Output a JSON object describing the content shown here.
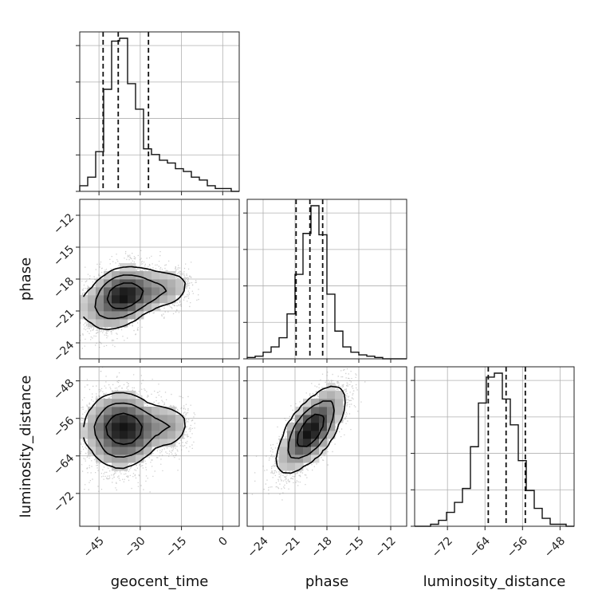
{
  "chart_data": {
    "type": "corner",
    "parameters": [
      "geocent_time",
      "phase",
      "luminosity_distance"
    ],
    "ranges": {
      "geocent_time": [
        -52,
        6
      ],
      "phase": [
        -25.5,
        -10.5
      ],
      "luminosity_distance": [
        -79,
        -45
      ]
    },
    "ticks": {
      "geocent_time": [
        -45,
        -30,
        -15,
        0
      ],
      "phase": [
        -24,
        -21,
        -18,
        -15,
        -12
      ],
      "luminosity_distance": [
        -72,
        -64,
        -56,
        -48
      ]
    },
    "tick_labels": {
      "geocent_time": [
        "−45",
        "−30",
        "−15",
        "0"
      ],
      "phase": [
        "−24",
        "−21",
        "−18",
        "−15",
        "−12"
      ],
      "luminosity_distance": [
        "−72",
        "−64",
        "−56",
        "−48"
      ]
    },
    "quantiles": {
      "geocent_time": [
        -43.5,
        -38,
        -27
      ],
      "phase": [
        -20.9,
        -19.6,
        -18.4
      ],
      "luminosity_distance": [
        -63.3,
        -59.5,
        -55.4
      ]
    },
    "histograms": {
      "geocent_time": {
        "edges_start": -52,
        "bin_width": 2.9,
        "counts": [
          2,
          5,
          14,
          36,
          53,
          54,
          38,
          29,
          15,
          13,
          11,
          10,
          8,
          7,
          5,
          4,
          2,
          1,
          1,
          0
        ]
      },
      "phase": {
        "edges_start": -25.5,
        "bin_width": 0.75,
        "counts": [
          1,
          2,
          5,
          9,
          16,
          34,
          64,
          95,
          116,
          94,
          49,
          21,
          9,
          5,
          3,
          2,
          1,
          0,
          0,
          0
        ]
      },
      "luminosity_distance": {
        "edges_start": -79,
        "bin_width": 1.7,
        "counts": [
          0,
          0,
          1,
          3,
          7,
          12,
          19,
          40,
          62,
          75,
          77,
          64,
          51,
          33,
          18,
          9,
          4,
          1,
          1,
          0
        ]
      }
    },
    "density_2d": [
      {
        "x": "geocent_time",
        "y": "phase",
        "mean": [
          -38,
          -19.7
        ],
        "sd": [
          6,
          1.45
        ],
        "corr": 0.35,
        "tail": {
          "x": [
            -35,
            -14
          ],
          "sd_y": 0.9,
          "y_at": [
            -19.6,
            -18.6
          ]
        }
      },
      {
        "x": "geocent_time",
        "y": "luminosity_distance",
        "mean": [
          -38,
          -58.5
        ],
        "sd": [
          6,
          4.2
        ],
        "corr": 0.0,
        "tail": {
          "x": [
            -35,
            -14
          ],
          "sd_y": 2.5,
          "y_at": [
            -58.5,
            -57.5
          ]
        }
      },
      {
        "x": "phase",
        "y": "luminosity_distance",
        "mean": [
          -19.5,
          -58.5
        ],
        "sd": [
          1.5,
          4.5
        ],
        "corr": 0.75
      }
    ],
    "grid": true
  }
}
